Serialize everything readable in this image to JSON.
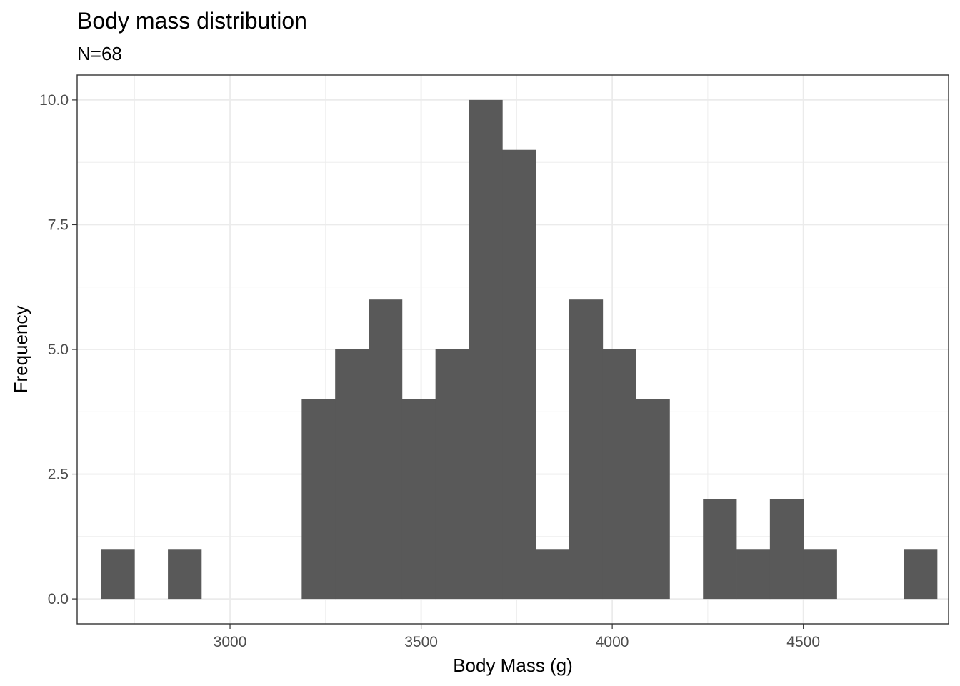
{
  "chart_data": {
    "type": "bar",
    "subtype": "histogram",
    "title": "Body mass distribution",
    "subtitle": "N=68",
    "xlabel": "Body Mass (g)",
    "ylabel": "Frequency",
    "xlim": [
      2600,
      4880
    ],
    "ylim": [
      -0.5,
      10.5
    ],
    "bin_width": 87.5,
    "x_ticks": [
      3000,
      3500,
      4000,
      4500
    ],
    "x_tick_labels": [
      "3000",
      "3500",
      "4000",
      "4500"
    ],
    "y_ticks": [
      0,
      2.5,
      5,
      7.5,
      10
    ],
    "y_tick_labels": [
      "0.0",
      "2.5",
      "5.0",
      "7.5",
      "10.0"
    ],
    "grid": true,
    "theme": "bw",
    "bar_color": "#595959",
    "bins": [
      {
        "x0": 2662.5,
        "x1": 2750.0,
        "count": 1
      },
      {
        "x0": 2837.5,
        "x1": 2925.0,
        "count": 1
      },
      {
        "x0": 3187.5,
        "x1": 3275.0,
        "count": 4
      },
      {
        "x0": 3275.0,
        "x1": 3362.5,
        "count": 5
      },
      {
        "x0": 3362.5,
        "x1": 3450.0,
        "count": 6
      },
      {
        "x0": 3450.0,
        "x1": 3537.5,
        "count": 4
      },
      {
        "x0": 3537.5,
        "x1": 3625.0,
        "count": 5
      },
      {
        "x0": 3625.0,
        "x1": 3712.5,
        "count": 10
      },
      {
        "x0": 3712.5,
        "x1": 3800.0,
        "count": 9
      },
      {
        "x0": 3800.0,
        "x1": 3887.5,
        "count": 1
      },
      {
        "x0": 3887.5,
        "x1": 3975.0,
        "count": 6
      },
      {
        "x0": 3975.0,
        "x1": 4062.5,
        "count": 5
      },
      {
        "x0": 4062.5,
        "x1": 4150.0,
        "count": 4
      },
      {
        "x0": 4237.5,
        "x1": 4325.0,
        "count": 2
      },
      {
        "x0": 4325.0,
        "x1": 4412.5,
        "count": 1
      },
      {
        "x0": 4412.5,
        "x1": 4500.0,
        "count": 2
      },
      {
        "x0": 4500.0,
        "x1": 4587.5,
        "count": 1
      },
      {
        "x0": 4762.5,
        "x1": 4850.0,
        "count": 1
      }
    ]
  }
}
